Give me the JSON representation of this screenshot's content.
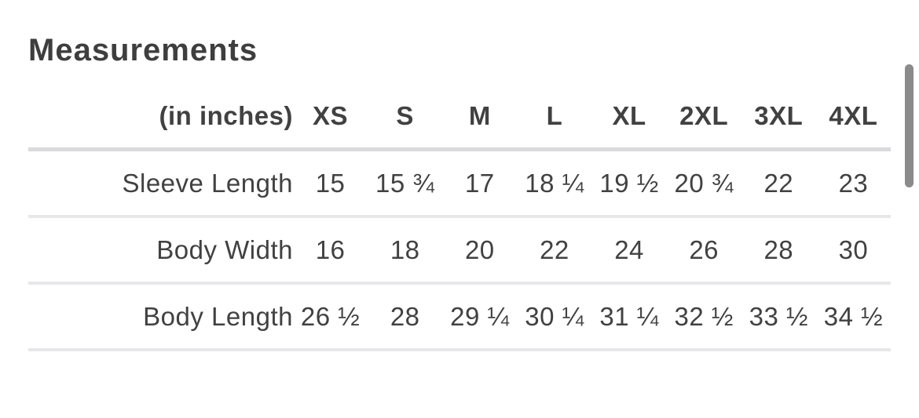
{
  "title": "Measurements",
  "table": {
    "unit_label": "(in inches)",
    "sizes": [
      "XS",
      "S",
      "M",
      "L",
      "XL",
      "2XL",
      "3XL",
      "4XL"
    ],
    "rows": [
      {
        "label": "Sleeve Length",
        "values": [
          "15",
          "15 ¾",
          "17",
          "18 ¼",
          "19 ½",
          "20 ¾",
          "22",
          "23"
        ]
      },
      {
        "label": "Body Width",
        "values": [
          "16",
          "18",
          "20",
          "22",
          "24",
          "26",
          "28",
          "30"
        ]
      },
      {
        "label": "Body Length",
        "values": [
          "26 ½",
          "28",
          "29 ¼",
          "30 ¼",
          "31 ¼",
          "32 ½",
          "33 ½",
          "34 ½"
        ]
      }
    ]
  }
}
